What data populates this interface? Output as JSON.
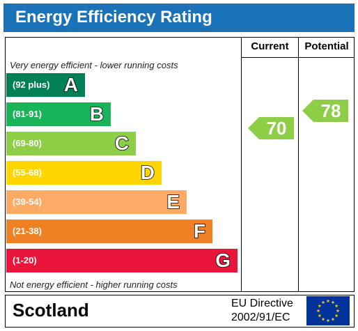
{
  "header": {
    "title": "Energy Efficiency Rating"
  },
  "columns": {
    "current": "Current",
    "potential": "Potential"
  },
  "notes": {
    "top": "Very energy efficient - lower running costs",
    "bottom": "Not energy efficient - higher running costs"
  },
  "chart_data": {
    "type": "bar",
    "title": "Energy Efficiency Rating",
    "categories": [
      "A",
      "B",
      "C",
      "D",
      "E",
      "F",
      "G"
    ],
    "ranges": [
      "(92 plus)",
      "(81-91)",
      "(69-80)",
      "(55-68)",
      "(39-54)",
      "(21-38)",
      "(1-20)"
    ],
    "colors": [
      "#008054",
      "#19b459",
      "#8dce46",
      "#ffd500",
      "#fcaa65",
      "#ef8023",
      "#e9153b"
    ],
    "current": {
      "label": "Current",
      "value": 70,
      "band": "C",
      "color": "#8dce46"
    },
    "potential": {
      "label": "Potential",
      "value": 78,
      "band": "C",
      "color": "#8dce46"
    }
  },
  "footer": {
    "region": "Scotland",
    "directive_line1": "EU Directive",
    "directive_line2": "2002/91/EC",
    "flag_colors": {
      "field": "#003399",
      "stars": "#ffcc00"
    }
  }
}
